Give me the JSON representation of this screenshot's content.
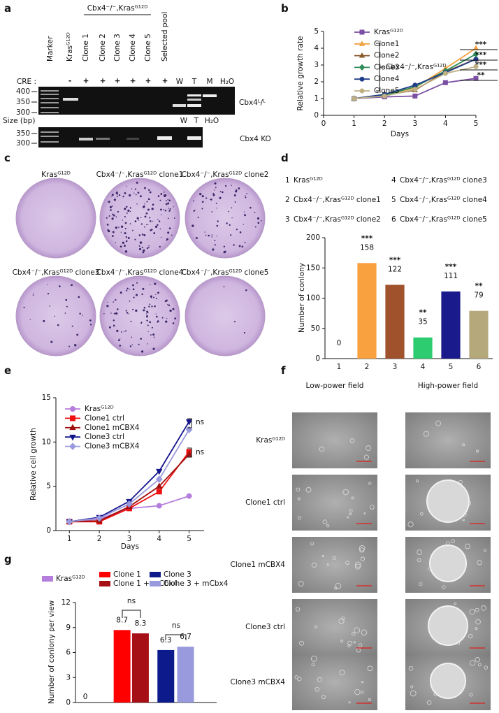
{
  "panel_labels": [
    "a",
    "b",
    "c",
    "d",
    "e",
    "f",
    "g"
  ],
  "gel": {
    "marker": "Marker",
    "lanes": [
      "Krasᴳ¹²ᴰ",
      "Clone 1",
      "Clone 2",
      "Clone 3",
      "Clone 4",
      "Clone 5",
      "Selected pool"
    ],
    "group": "Cbx4⁻/⁻,Krasᴳ¹²ᴰ",
    "cre_label": "CRE :",
    "cre": [
      "-",
      "+",
      "+",
      "+",
      "+",
      "+",
      "+"
    ],
    "controls_top": [
      "W",
      "T",
      "M",
      "H₂O"
    ],
    "sizes_top": [
      "400",
      "350",
      "300"
    ],
    "size_unit": "Size (bp)",
    "gel_top": "Cbx4ᴸ/ᴸ",
    "controls_bottom": [
      "W",
      "T",
      "H₂O"
    ],
    "sizes_bottom": [
      "350",
      "300"
    ],
    "gel_bottom": "Cbx4 KO"
  },
  "plates": [
    "Krasᴳ¹²ᴰ",
    "Cbx4⁻/⁻,Krasᴳ¹²ᴰ clone1",
    "Cbx4⁻/⁻,Krasᴳ¹²ᴰ clone2",
    "Cbx4⁻/⁻,Krasᴳ¹²ᴰ clone3",
    "Cbx4⁻/⁻,Krasᴳ¹²ᴰ clone4",
    "Cbx4⁻/⁻,Krasᴳ¹²ᴰ clone5"
  ],
  "microscopy": {
    "columns": [
      "Low-power field",
      "High-power field"
    ],
    "rows": [
      "Krasᴳ¹²ᴰ",
      "Clone1 ctrl",
      "Clone1 mCBX4",
      "Clone3 ctrl",
      "Clone3 mCBX4"
    ]
  },
  "chart_data": [
    {
      "type": "line",
      "x": [
        1,
        2,
        3,
        4,
        5
      ],
      "xlim": [
        0,
        5
      ],
      "xticks": [
        0,
        1,
        2,
        3,
        4,
        5
      ],
      "ylim": [
        0,
        5
      ],
      "yticks": [
        0,
        1,
        2,
        3,
        4,
        5
      ],
      "xlabel": "Days",
      "ylabel": "Relative growth rate",
      "series": [
        {
          "name": "Krasᴳ¹²ᴰ",
          "color": "#7b4fa3",
          "marker": "square",
          "values": [
            1,
            1.1,
            1.15,
            1.95,
            2.2
          ]
        },
        {
          "name": "Clone1",
          "color": "#f4a040",
          "marker": "triangle",
          "values": [
            1,
            1.2,
            1.65,
            2.8,
            4.0
          ]
        },
        {
          "name": "Clone2",
          "color": "#8b5a2b",
          "marker": "triangle",
          "values": [
            1,
            1.2,
            1.5,
            2.6,
            3.35
          ]
        },
        {
          "name": "Clone3",
          "color": "#2e8b57",
          "marker": "diamond",
          "values": [
            1,
            1.2,
            1.7,
            2.65,
            3.65
          ]
        },
        {
          "name": "Clone4",
          "color": "#1f3c88",
          "marker": "circle",
          "values": [
            1,
            1.25,
            1.8,
            2.55,
            3.35
          ]
        },
        {
          "name": "Clone5",
          "color": "#bdb084",
          "marker": "circle",
          "values": [
            1,
            1.15,
            1.55,
            2.5,
            2.9
          ]
        }
      ],
      "group_label": "Cbx4⁻/⁻,Krasᴳ¹²ᴰ",
      "significance": [
        "***",
        "***",
        "***",
        "**"
      ]
    },
    {
      "type": "bar",
      "categories": [
        "1",
        "2",
        "3",
        "4",
        "5",
        "6"
      ],
      "values": [
        0,
        158,
        122,
        35,
        111,
        79
      ],
      "colors": [
        "#b57edc",
        "#f9a13f",
        "#a0522d",
        "#2ecc71",
        "#1a1a8c",
        "#b5a97c"
      ],
      "ylim": [
        0,
        200
      ],
      "yticks": [
        0,
        50,
        100,
        150,
        200
      ],
      "ylabel": "Number of conlony",
      "significance": [
        null,
        "***",
        "***",
        "**",
        "***",
        "**"
      ],
      "legend": [
        {
          "key": "1",
          "label": "Krasᴳ¹²ᴰ"
        },
        {
          "key": "2",
          "label": "Cbx4⁻/⁻,Krasᴳ¹²ᴰ clone1"
        },
        {
          "key": "3",
          "label": "Cbx4⁻/⁻,Krasᴳ¹²ᴰ clone2"
        },
        {
          "key": "4",
          "label": "Cbx4⁻/⁻,Krasᴳ¹²ᴰ clone3"
        },
        {
          "key": "5",
          "label": "Cbx4⁻/⁻,Krasᴳ¹²ᴰ clone4"
        },
        {
          "key": "6",
          "label": "Cbx4⁻/⁻,Krasᴳ¹²ᴰ clone5"
        }
      ]
    },
    {
      "type": "line",
      "x": [
        1,
        2,
        3,
        4,
        5
      ],
      "xlim": [
        0.55,
        5.5
      ],
      "xticks": [
        1,
        2,
        3,
        4,
        5
      ],
      "ylim": [
        0,
        15
      ],
      "yticks": [
        0,
        5,
        10,
        15
      ],
      "xlabel": "Days",
      "ylabel": "Relative cell growth",
      "series": [
        {
          "name": "Krasᴳ¹²ᴰ",
          "color": "#b57edc",
          "marker": "circle",
          "values": [
            1,
            1.3,
            2.5,
            2.8,
            3.9
          ]
        },
        {
          "name": "Clone1 ctrl",
          "color": "#ee1111",
          "marker": "square",
          "values": [
            1,
            1.0,
            2.5,
            4.4,
            8.9
          ]
        },
        {
          "name": "Clone1 mCBX4",
          "color": "#a01010",
          "marker": "triangle",
          "values": [
            1,
            1.1,
            2.7,
            5.0,
            8.6
          ]
        },
        {
          "name": "Clone3 ctrl",
          "color": "#14148c",
          "marker": "triangle-down",
          "values": [
            1,
            1.5,
            3.3,
            6.7,
            12.3
          ]
        },
        {
          "name": "Clone3 mCBX4",
          "color": "#9999dd",
          "marker": "diamond",
          "values": [
            1,
            1.4,
            3.0,
            5.8,
            11.4
          ]
        }
      ],
      "significance": [
        "ns",
        "ns"
      ]
    },
    {
      "type": "bar",
      "categories": [
        null
      ],
      "ylim": [
        0,
        12
      ],
      "yticks": [
        0,
        3,
        6,
        9,
        12
      ],
      "ylabel": "Number of conlony per view",
      "series": [
        {
          "name": "Krasᴳ¹²ᴰ",
          "color": "#b57edc",
          "values": [
            0
          ]
        },
        {
          "name": "Clone 1",
          "color": "#ff0000",
          "values": [
            8.7
          ]
        },
        {
          "name": "Clone 1 + mCbx4",
          "color": "#a50f15",
          "values": [
            8.3
          ]
        },
        {
          "name": "Clone 3",
          "color": "#0d1a8c",
          "values": [
            6.3
          ]
        },
        {
          "name": "Clone 3 + mCbx4",
          "color": "#9999dd",
          "values": [
            6.7
          ]
        }
      ],
      "significance": [
        "ns",
        "ns"
      ]
    }
  ]
}
